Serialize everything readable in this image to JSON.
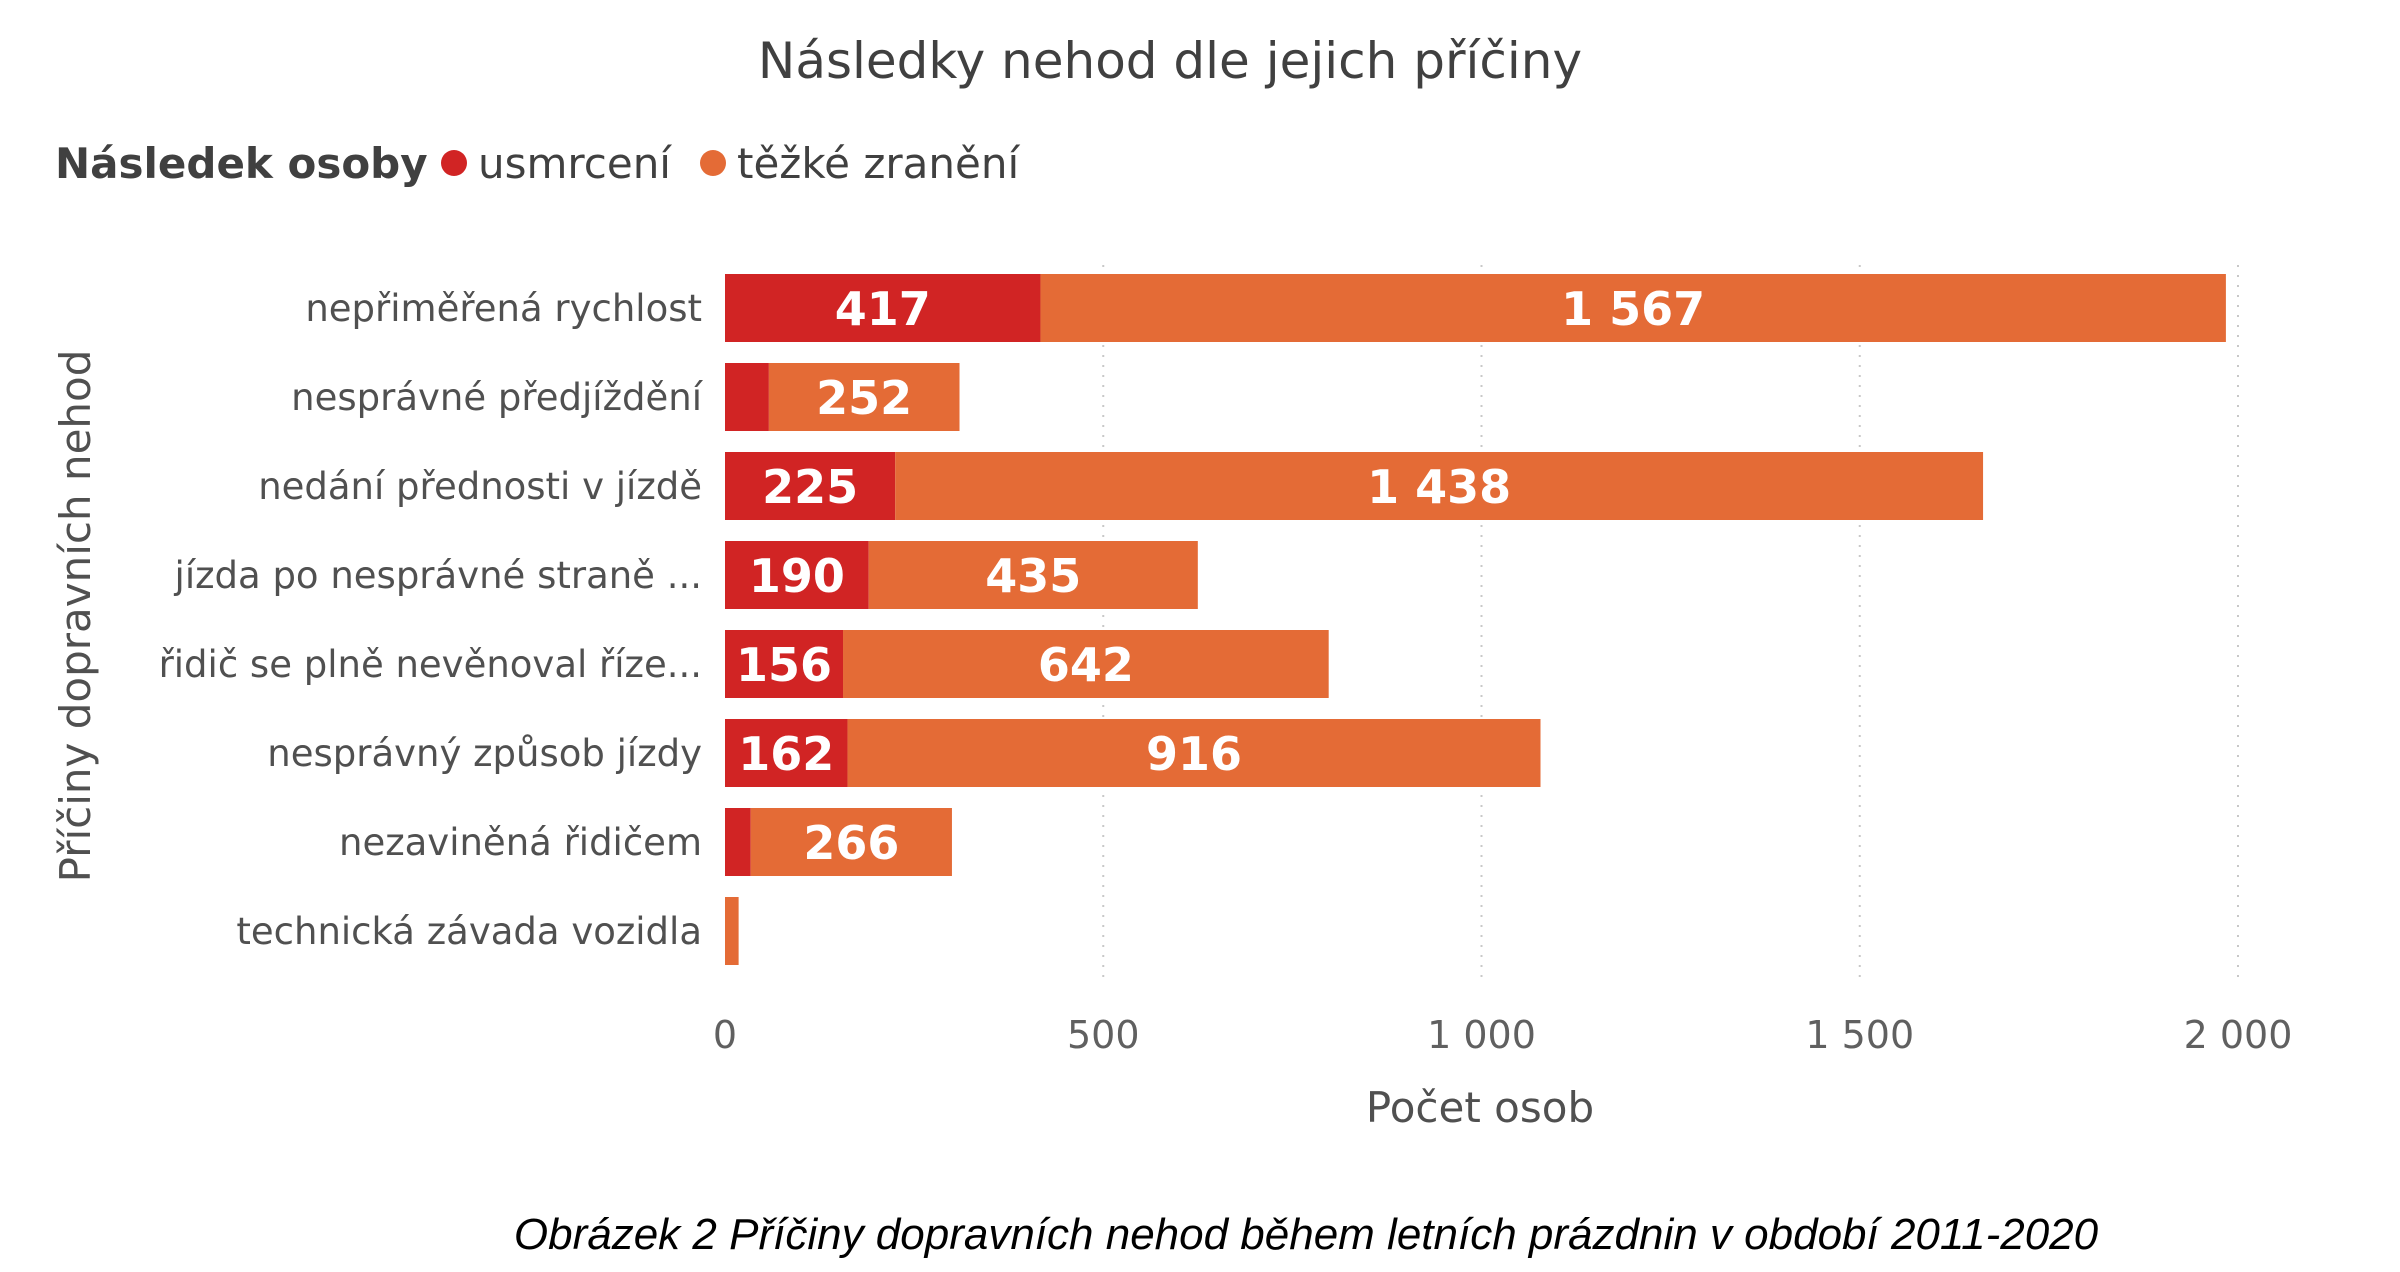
{
  "chart_data": {
    "type": "bar",
    "orientation": "horizontal",
    "stacked": true,
    "title": "Následky nehod dle jejich příčiny",
    "legend_title": "Následek osoby",
    "legend_position": "top-left",
    "xlabel": "Počet osob",
    "ylabel": "Příčiny dopravních nehod",
    "xlim": [
      0,
      2000
    ],
    "xticks": [
      "0",
      "500",
      "1 000",
      "1 500",
      "2 000"
    ],
    "xtick_values": [
      0,
      500,
      1000,
      1500,
      2000
    ],
    "grid": "vertical dotted",
    "categories": [
      "nepřiměřená rychlost",
      "nesprávné předjíždění",
      "nedání přednosti v jízdě",
      "jízda po nesprávné straně ...",
      "řidič se plně nevěnoval říze...",
      "nesprávný způsob jízdy",
      "nezaviněná řidičem",
      "technická závada vozidla"
    ],
    "series": [
      {
        "name": "usmrcení",
        "color": "#d12424",
        "values": [
          417,
          58,
          225,
          190,
          156,
          162,
          34,
          0
        ],
        "labels": [
          "417",
          "",
          "225",
          "190",
          "156",
          "162",
          "",
          ""
        ]
      },
      {
        "name": "těžké zranění",
        "color": "#e46b36",
        "values": [
          1567,
          252,
          1438,
          435,
          642,
          916,
          266,
          18
        ],
        "labels": [
          "1 567",
          "252",
          "1 438",
          "435",
          "642",
          "916",
          "266",
          ""
        ]
      }
    ]
  },
  "caption": "Obrázek 2 Příčiny dopravních nehod během letních prázdnin v období 2011-2020"
}
